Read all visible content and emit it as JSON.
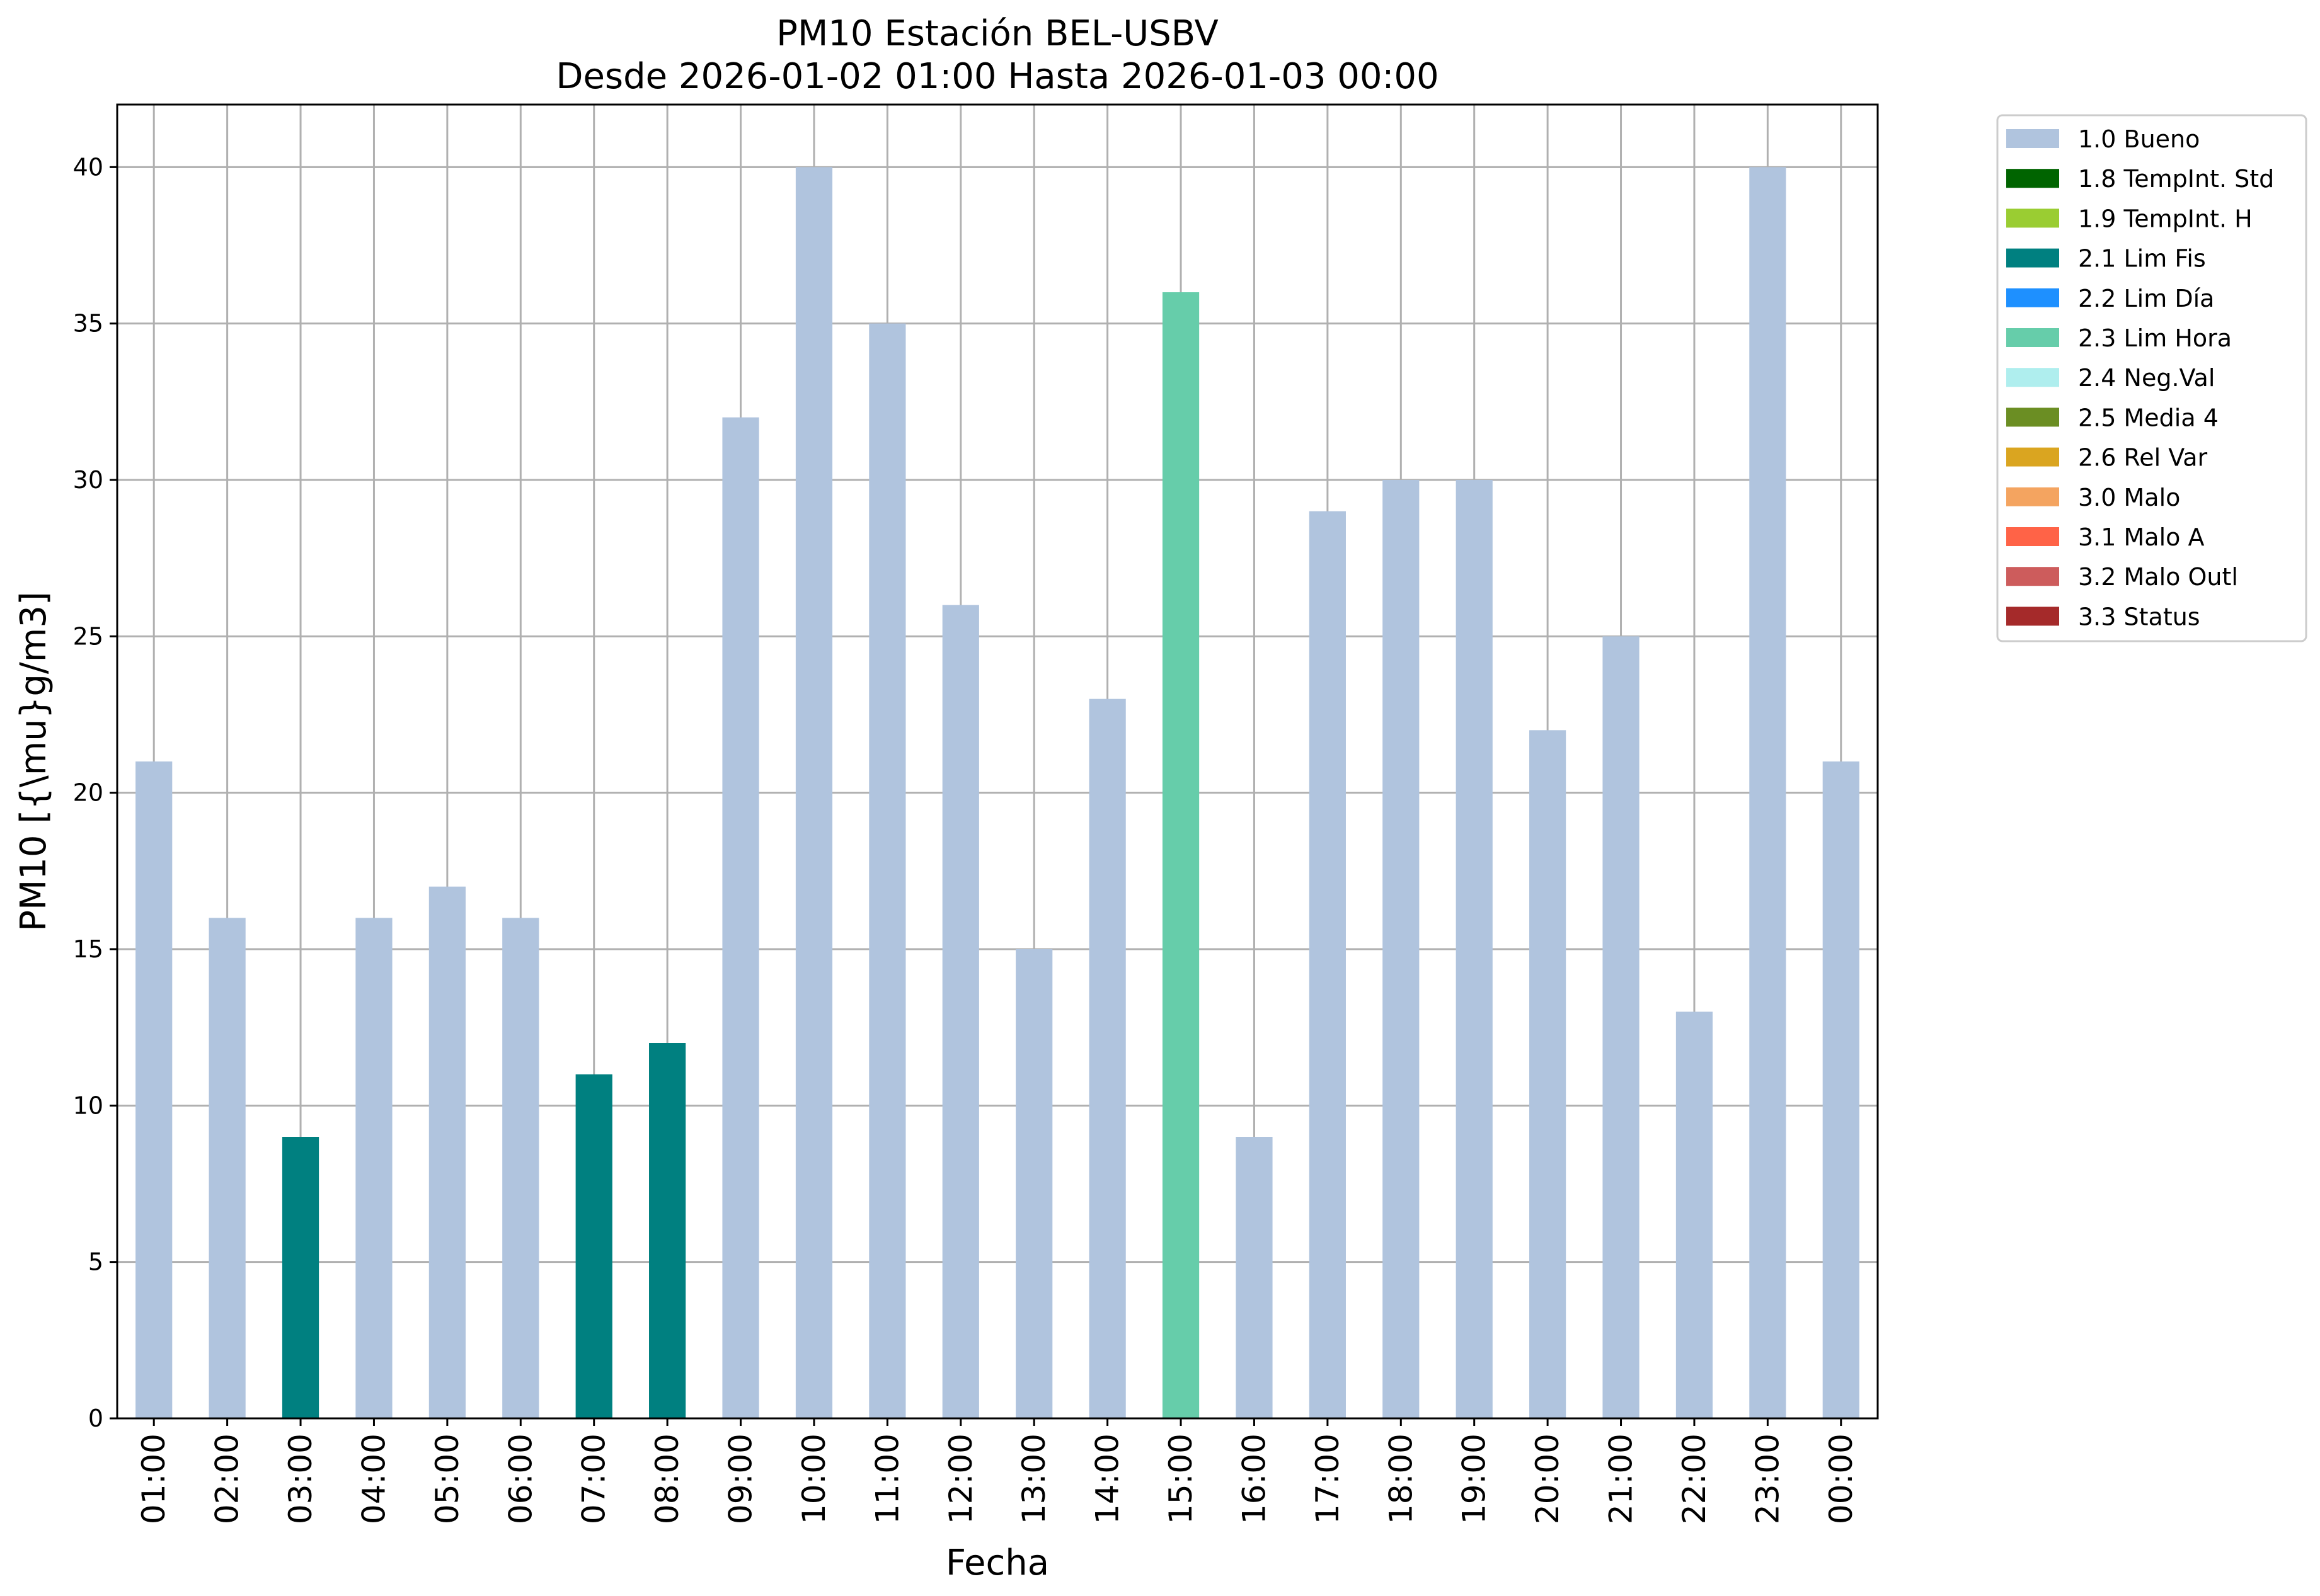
{
  "chart_data": {
    "type": "bar",
    "title": "PM10 Estación BEL-USBV",
    "subtitle": "Desde 2026-01-02 01:00 Hasta 2026-01-03 00:00",
    "xlabel": "Fecha",
    "ylabel": "PM10 [{\\mu}g/m3]",
    "ylim": [
      0,
      42
    ],
    "yticks": [
      0,
      5,
      10,
      15,
      20,
      25,
      30,
      35,
      40
    ],
    "grid": true,
    "legend_position": "outside-top-right",
    "categories": [
      "01:00",
      "02:00",
      "03:00",
      "04:00",
      "05:00",
      "06:00",
      "07:00",
      "08:00",
      "09:00",
      "10:00",
      "11:00",
      "12:00",
      "13:00",
      "14:00",
      "15:00",
      "16:00",
      "17:00",
      "18:00",
      "19:00",
      "20:00",
      "21:00",
      "22:00",
      "23:00",
      "00:00"
    ],
    "values": [
      21,
      16,
      9,
      16,
      17,
      16,
      11,
      12,
      32,
      40,
      35,
      26,
      15,
      23,
      36,
      9,
      29,
      30,
      30,
      22,
      25,
      13,
      40,
      21
    ],
    "flags": [
      "1.0 Bueno",
      "1.0 Bueno",
      "2.1 Lim Fis",
      "1.0 Bueno",
      "1.0 Bueno",
      "1.0 Bueno",
      "2.1 Lim Fis",
      "2.1 Lim Fis",
      "1.0 Bueno",
      "1.0 Bueno",
      "1.0 Bueno",
      "1.0 Bueno",
      "1.0 Bueno",
      "1.0 Bueno",
      "2.3 Lim Hora",
      "1.0 Bueno",
      "1.0 Bueno",
      "1.0 Bueno",
      "1.0 Bueno",
      "1.0 Bueno",
      "1.0 Bueno",
      "1.0 Bueno",
      "1.0 Bueno",
      "1.0 Bueno"
    ],
    "legend": [
      {
        "label": "1.0 Bueno",
        "color": "#b0c4de"
      },
      {
        "label": "1.8 TempInt. Std",
        "color": "#006400"
      },
      {
        "label": "1.9 TempInt. H",
        "color": "#9acd32"
      },
      {
        "label": "2.1 Lim Fis",
        "color": "#008080"
      },
      {
        "label": "2.2 Lim Día",
        "color": "#1e90ff"
      },
      {
        "label": "2.3 Lim Hora",
        "color": "#66cdaa"
      },
      {
        "label": "2.4 Neg.Val",
        "color": "#afeeee"
      },
      {
        "label": "2.5 Media 4",
        "color": "#6b8e23"
      },
      {
        "label": "2.6 Rel Var",
        "color": "#daa520"
      },
      {
        "label": "3.0 Malo",
        "color": "#f4a460"
      },
      {
        "label": "3.1 Malo A",
        "color": "#ff6347"
      },
      {
        "label": "3.2 Malo Outl",
        "color": "#cd5c5c"
      },
      {
        "label": "3.3 Status",
        "color": "#a52a2a"
      }
    ]
  }
}
